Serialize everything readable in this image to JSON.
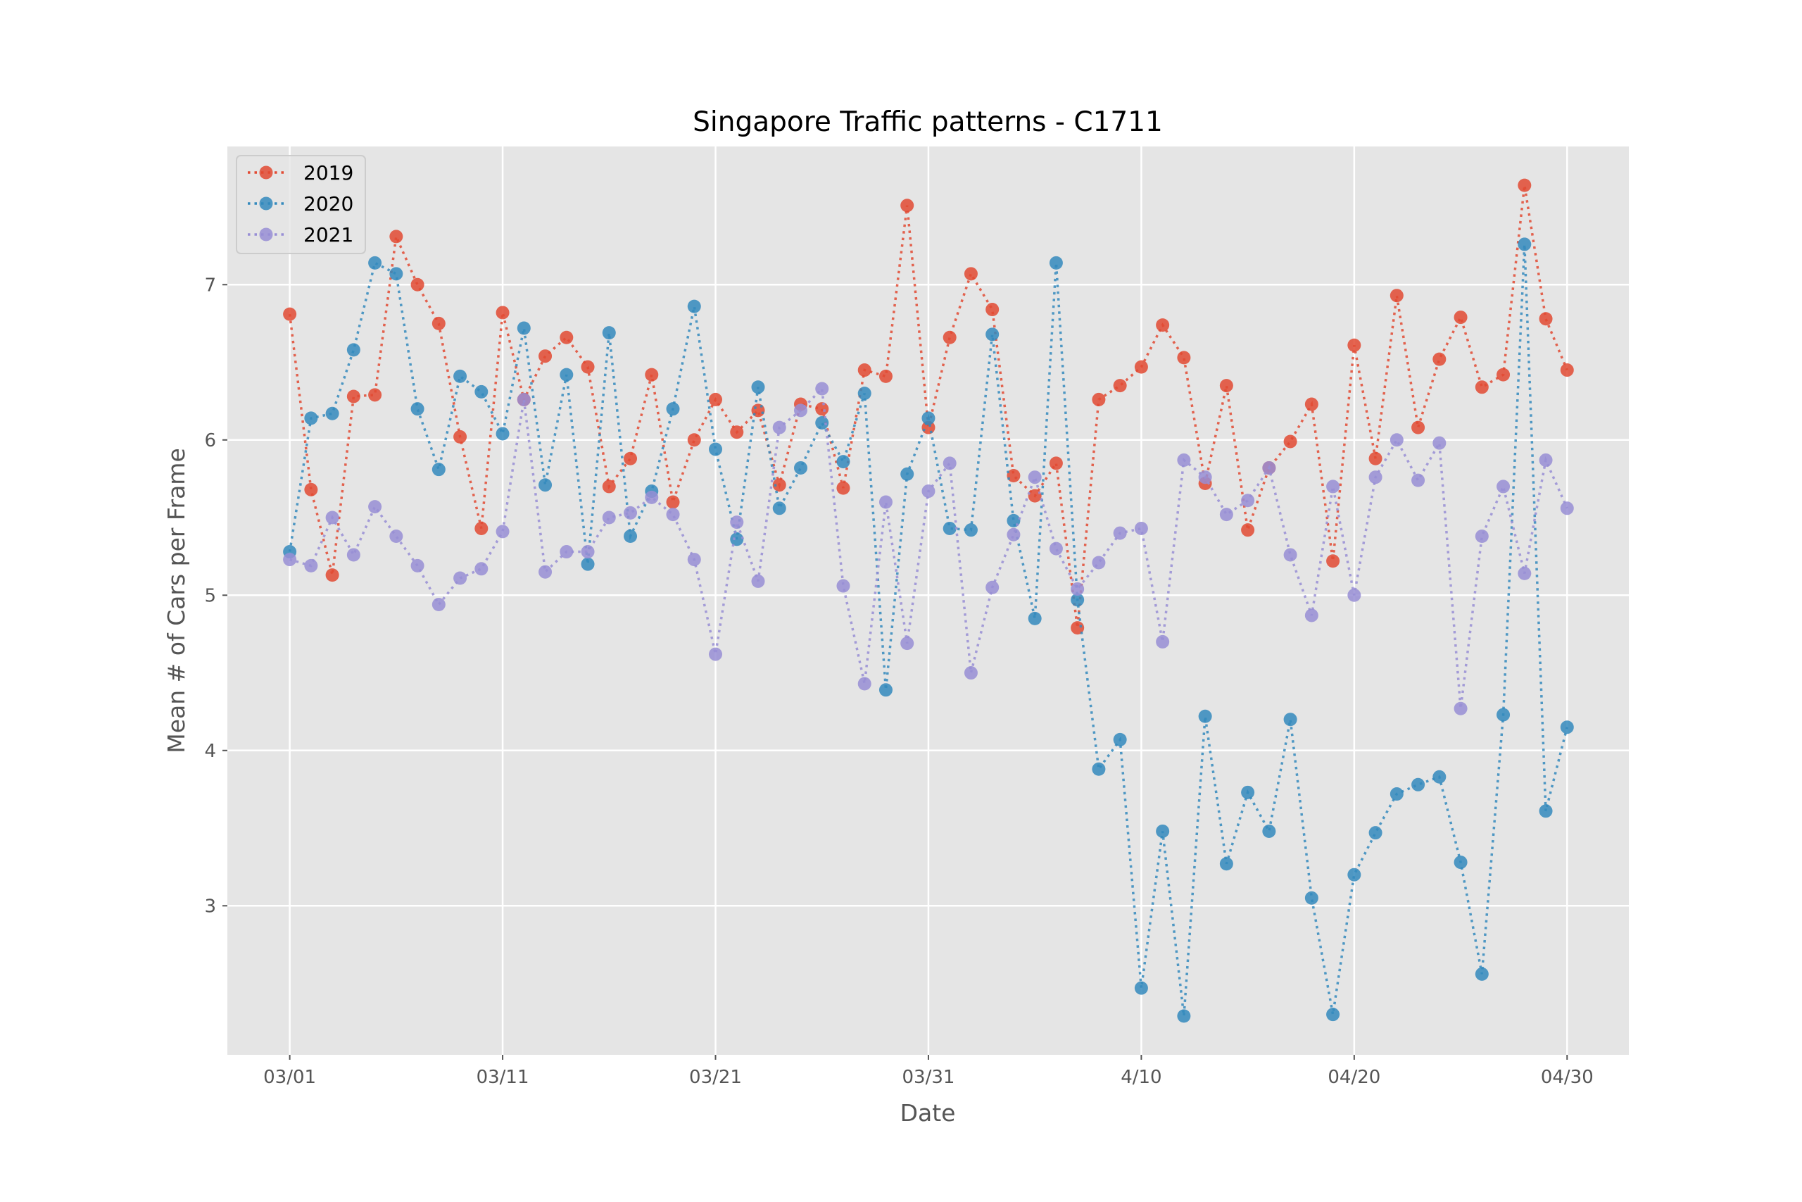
{
  "chart_data": {
    "type": "line",
    "title": "Singapore Traffic patterns - C1711",
    "xlabel": "Date",
    "ylabel": "Mean # of Cars per Frame",
    "x": [
      "03/01",
      "03/02",
      "03/03",
      "03/04",
      "03/05",
      "03/06",
      "03/07",
      "03/08",
      "03/09",
      "03/10",
      "03/11",
      "03/12",
      "03/13",
      "03/14",
      "03/15",
      "03/16",
      "03/17",
      "03/18",
      "03/19",
      "03/20",
      "03/21",
      "03/22",
      "03/23",
      "03/24",
      "03/25",
      "03/26",
      "03/27",
      "03/28",
      "03/29",
      "03/30",
      "03/31",
      "04/01",
      "04/02",
      "04/03",
      "04/04",
      "04/05",
      "04/06",
      "04/07",
      "04/08",
      "04/09",
      "04/10",
      "04/11",
      "04/12",
      "04/13",
      "04/14",
      "04/15",
      "04/16",
      "04/17",
      "04/18",
      "04/19",
      "04/20",
      "04/21",
      "04/22",
      "04/23",
      "04/24",
      "04/25",
      "04/26",
      "04/27",
      "04/28",
      "04/29",
      "04/30"
    ],
    "xticks": [
      {
        "index": 0,
        "label": "03/01"
      },
      {
        "index": 10,
        "label": "03/11"
      },
      {
        "index": 20,
        "label": "03/21"
      },
      {
        "index": 30,
        "label": "03/31"
      },
      {
        "index": 40,
        "label": "4/10"
      },
      {
        "index": 50,
        "label": "04/20"
      },
      {
        "index": 60,
        "label": "04/30"
      }
    ],
    "yticks": [
      3,
      4,
      5,
      6,
      7
    ],
    "ylim": [
      2.04,
      7.89
    ],
    "xlim_index": [
      -2.93,
      62.9
    ],
    "grid": true,
    "legend_placement": "upper-left",
    "series": [
      {
        "name": "2019",
        "color": "#E24A33",
        "values": [
          6.81,
          5.68,
          5.13,
          6.28,
          6.29,
          7.31,
          7.0,
          6.75,
          6.02,
          5.43,
          6.82,
          6.26,
          6.54,
          6.66,
          6.47,
          5.7,
          5.88,
          6.42,
          5.6,
          6.0,
          6.26,
          6.05,
          6.19,
          5.71,
          6.23,
          6.2,
          5.69,
          6.45,
          6.41,
          7.51,
          6.08,
          6.66,
          7.07,
          6.84,
          5.77,
          5.64,
          5.85,
          4.79,
          6.26,
          6.35,
          6.47,
          6.74,
          6.53,
          5.72,
          6.35,
          5.42,
          5.82,
          5.99,
          6.23,
          5.22,
          6.61,
          5.88,
          6.93,
          6.08,
          6.52,
          6.79,
          6.34,
          6.42,
          7.64,
          6.78,
          6.45
        ]
      },
      {
        "name": "2020",
        "color": "#348ABD",
        "values": [
          5.28,
          6.14,
          6.17,
          6.58,
          7.14,
          7.07,
          6.2,
          5.81,
          6.41,
          6.31,
          6.04,
          6.72,
          5.71,
          6.42,
          5.2,
          6.69,
          5.38,
          5.67,
          6.2,
          6.86,
          5.94,
          5.36,
          6.34,
          5.56,
          5.82,
          6.11,
          5.86,
          6.3,
          4.39,
          5.78,
          6.14,
          5.43,
          5.42,
          6.68,
          5.48,
          4.85,
          7.14,
          4.97,
          3.88,
          4.07,
          2.47,
          3.48,
          2.29,
          4.22,
          3.27,
          3.73,
          3.48,
          4.2,
          3.05,
          2.3,
          3.2,
          3.47,
          3.72,
          3.78,
          3.83,
          3.28,
          2.56,
          4.23,
          7.26,
          3.61,
          4.15
        ]
      },
      {
        "name": "2021",
        "color": "#988ED5",
        "values": [
          5.23,
          5.19,
          5.5,
          5.26,
          5.57,
          5.38,
          5.19,
          4.94,
          5.11,
          5.17,
          5.41,
          6.26,
          5.15,
          5.28,
          5.28,
          5.5,
          5.53,
          5.63,
          5.52,
          5.23,
          4.62,
          5.47,
          5.09,
          6.08,
          6.19,
          6.33,
          5.06,
          4.43,
          5.6,
          4.69,
          5.67,
          5.85,
          4.5,
          5.05,
          5.39,
          5.76,
          5.3,
          5.04,
          5.21,
          5.4,
          5.43,
          4.7,
          5.87,
          5.76,
          5.52,
          5.61,
          5.82,
          5.26,
          4.87,
          5.7,
          5.0,
          5.76,
          6.0,
          5.74,
          5.98,
          4.27,
          5.38,
          5.7,
          5.14,
          5.87,
          5.56
        ]
      }
    ]
  }
}
